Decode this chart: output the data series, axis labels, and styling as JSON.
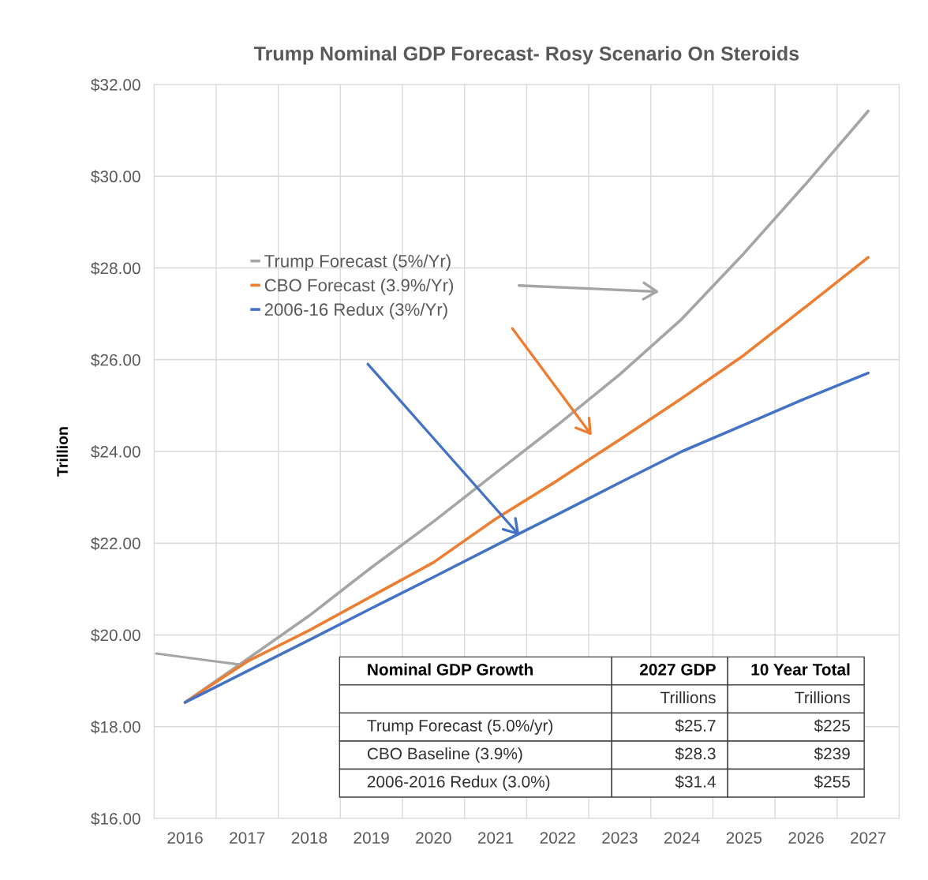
{
  "chart_data": {
    "type": "line",
    "title": "Trump Nominal GDP Forecast- Rosy Scenario On Steroids",
    "ylabel": "Trillion",
    "categories": [
      "2016",
      "2017",
      "2018",
      "2019",
      "2020",
      "2021",
      "2022",
      "2023",
      "2024",
      "2025",
      "2026",
      "2027"
    ],
    "series": [
      {
        "name": "Trump Forecast (5%/Yr)",
        "color": "#a5a5a5",
        "values": [
          18.53,
          19.47,
          20.42,
          21.47,
          22.47,
          23.53,
          24.58,
          25.68,
          26.89,
          28.32,
          29.84,
          31.42
        ]
      },
      {
        "name": "CBO Forecast (3.9%/Yr)",
        "color": "#ed7d31",
        "values": [
          18.53,
          19.42,
          20.1,
          20.84,
          21.58,
          22.53,
          23.37,
          24.26,
          25.16,
          26.1,
          27.16,
          28.23
        ]
      },
      {
        "name": "2006-16 Redux (3%/Yr)",
        "color": "#4472c4",
        "values": [
          18.53,
          19.21,
          19.89,
          20.58,
          21.26,
          21.95,
          22.63,
          23.32,
          24.0,
          24.58,
          25.16,
          25.71
        ]
      }
    ],
    "ylim": [
      16,
      32
    ],
    "yticks": [
      {
        "value": 16,
        "label": "$16.00"
      },
      {
        "value": 18,
        "label": "$18.00"
      },
      {
        "value": 20,
        "label": "$20.00"
      },
      {
        "value": 22,
        "label": "$22.00"
      },
      {
        "value": 24,
        "label": "$24.00"
      },
      {
        "value": 26,
        "label": "$26.00"
      },
      {
        "value": 28,
        "label": "$28.00"
      },
      {
        "value": 30,
        "label": "$30.00"
      },
      {
        "value": 32,
        "label": "$32.00"
      }
    ],
    "grid": true,
    "legend": "upper left",
    "line_style": "solid",
    "annotations": [
      "Nominal GDP Growth",
      "2027 GDP",
      "10 Year Total",
      null,
      "Trillions",
      "Trillions",
      "Trump Forecast (5.0%/yr)",
      "$25.7",
      "$225",
      "CBO Baseline (3.9%)",
      "$28.3",
      "$239",
      "2006-2016 Redux (3.0%)",
      "$31.4",
      "$255"
    ]
  }
}
